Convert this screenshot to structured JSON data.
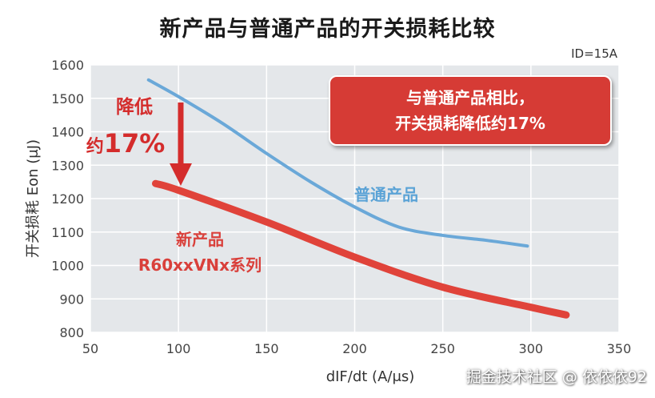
{
  "title": "新产品与普通产品的开关损耗比较",
  "condition": "ID=15A",
  "watermark": "掘金技术社区 @ 依依依92",
  "callout": [
    "与普通产品相比，",
    "开关损耗降低约17%"
  ],
  "annotation": {
    "line1": "降低",
    "prefix": "约",
    "value": "17%"
  },
  "colors": {
    "plot_bg": "#e4e7ea",
    "grid": "#ffffff",
    "old_series": "#6aa8d8",
    "new_series": "#e0433a",
    "callout_bg": "#d63a34",
    "annotation": "#d42c2c"
  },
  "chart_data": {
    "type": "line",
    "title": "新产品与普通产品的开关损耗比较",
    "xlabel": "dIF/dt (A/μs)",
    "ylabel": "开关损耗 Eon (μJ)",
    "xlim": [
      50,
      350
    ],
    "ylim": [
      800,
      1600
    ],
    "xticks": [
      50,
      100,
      150,
      200,
      250,
      300,
      350
    ],
    "yticks": [
      800,
      900,
      1000,
      1100,
      1200,
      1300,
      1400,
      1500,
      1600
    ],
    "grid": true,
    "series": [
      {
        "name": "普通产品",
        "color": "#6aa8d8",
        "x": [
          83,
          100,
          125,
          150,
          175,
          200,
          225,
          250,
          275,
          298
        ],
        "y": [
          1555,
          1505,
          1425,
          1335,
          1250,
          1175,
          1115,
          1090,
          1075,
          1058
        ]
      },
      {
        "name": "新产品\nR60xxVNx系列",
        "color": "#e0433a",
        "x": [
          87,
          100,
          150,
          200,
          250,
          300,
          320
        ],
        "y": [
          1245,
          1225,
          1130,
          1025,
          935,
          875,
          852
        ]
      }
    ],
    "annotations": [
      "与普通产品相比，开关损耗降低约17%",
      "降低约17%"
    ]
  }
}
